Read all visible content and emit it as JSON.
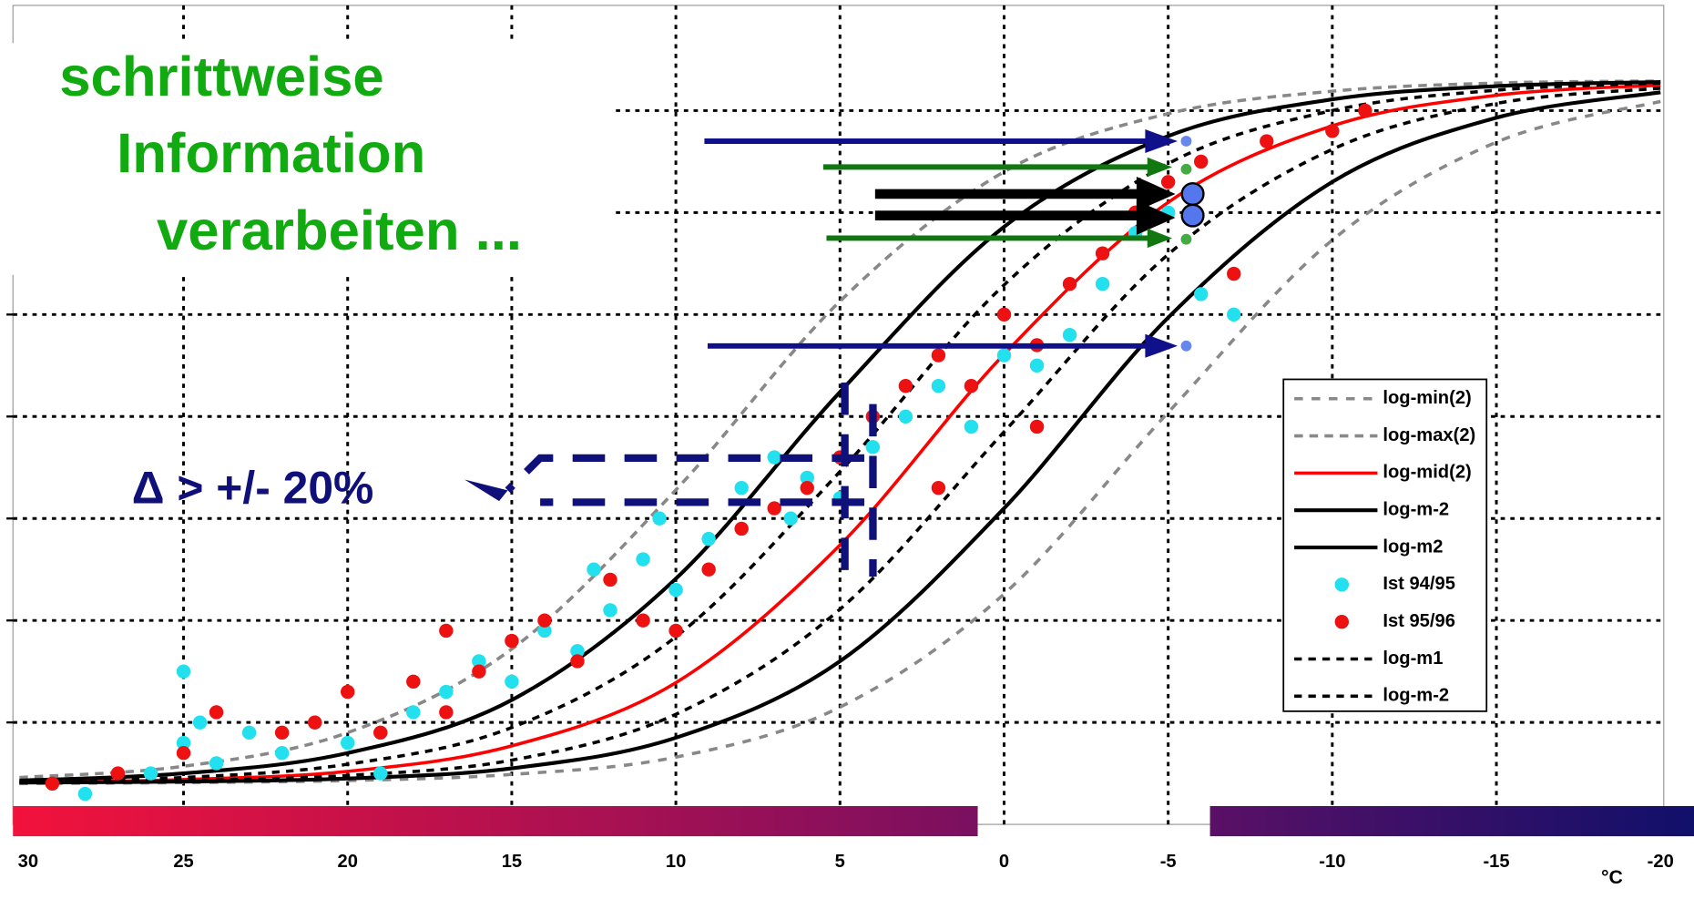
{
  "chart_data": {
    "type": "line",
    "annotations": {
      "heading": [
        "schrittweise",
        "Information",
        "verarbeiten ..."
      ],
      "delta": "Δ > +/- 20%",
      "unit": "°C"
    },
    "x": [
      30,
      25,
      20,
      15,
      10,
      5,
      0,
      -5,
      -10,
      -15,
      -20
    ],
    "xlim": [
      30,
      -20
    ],
    "xticks": [
      30,
      25,
      20,
      15,
      10,
      5,
      0,
      -5,
      -10,
      -15,
      -20
    ],
    "ylim": [
      0,
      8
    ],
    "yticks": [
      1,
      2,
      3,
      4,
      5,
      6,
      7
    ],
    "grid": true,
    "legend": "right",
    "series": [
      {
        "name": "log-min(2)",
        "type": "line",
        "color": "#888888",
        "dash": "8 8",
        "width": 3,
        "values": [
          0.4,
          0.41,
          0.43,
          0.49,
          0.66,
          1.15,
          2.26,
          4.04,
          5.73,
          6.69,
          7.09
        ]
      },
      {
        "name": "log-max(2)",
        "type": "line",
        "color": "#888888",
        "dash": "8 6",
        "width": 3,
        "values": [
          0.46,
          0.57,
          0.9,
          1.72,
          3.28,
          5.13,
          6.4,
          6.97,
          7.19,
          7.27,
          7.29
        ]
      },
      {
        "name": "log-mid(2)",
        "type": "line",
        "color": "#ff0000",
        "dash": "",
        "width": 3,
        "values": [
          0.41,
          0.44,
          0.52,
          0.77,
          1.39,
          2.74,
          4.61,
          6.1,
          6.85,
          7.15,
          7.25
        ]
      },
      {
        "name": "log-m-2",
        "type": "line",
        "color": "#000000",
        "dash": "",
        "width": 3.5,
        "values": [
          0.43,
          0.5,
          0.7,
          1.22,
          2.41,
          4.24,
          5.86,
          6.75,
          7.11,
          7.24,
          7.28
        ]
      },
      {
        "name": "log-m2",
        "type": "line",
        "color": "#000000",
        "dash": "",
        "width": 3.5,
        "values": [
          0.41,
          0.42,
          0.45,
          0.55,
          0.85,
          1.6,
          3.1,
          4.97,
          6.3,
          6.93,
          7.18
        ]
      },
      {
        "name": "Ist 94/95",
        "type": "scatter",
        "color": "#22e0ee",
        "x": [
          28,
          26,
          25,
          24.5,
          24,
          23,
          22,
          21,
          20,
          19,
          18,
          17,
          16,
          15,
          14,
          13,
          12.5,
          12,
          11,
          10,
          9,
          8,
          7,
          6.5,
          6,
          5,
          4,
          3,
          2,
          1,
          0,
          -1,
          -2,
          -3,
          -4,
          -5,
          -6,
          -7,
          25,
          10.5
        ],
        "values": [
          0.3,
          0.5,
          0.8,
          1.0,
          0.6,
          0.9,
          0.7,
          1.0,
          0.8,
          0.5,
          1.1,
          1.3,
          1.6,
          1.4,
          1.9,
          1.7,
          2.5,
          2.1,
          2.6,
          2.3,
          2.8,
          3.3,
          3.6,
          3.0,
          3.4,
          3.2,
          3.7,
          4.0,
          4.3,
          3.9,
          4.6,
          4.5,
          4.8,
          5.3,
          5.8,
          6.0,
          5.2,
          5.0,
          1.5,
          3.0
        ]
      },
      {
        "name": "Ist 95/96",
        "type": "scatter",
        "color": "#ee1111",
        "x": [
          29,
          27,
          25,
          24,
          22,
          21,
          20,
          19,
          18,
          17,
          16,
          15,
          14,
          13,
          12,
          11,
          10,
          9,
          8,
          7,
          6,
          5,
          4,
          3,
          2,
          1,
          0,
          -1,
          -2,
          -3,
          -4,
          -5,
          -6,
          -8,
          -10,
          -11,
          -7,
          17,
          -1,
          2
        ],
        "values": [
          0.4,
          0.5,
          0.7,
          1.1,
          0.9,
          1.0,
          1.3,
          0.9,
          1.4,
          1.1,
          1.5,
          1.8,
          2.0,
          1.6,
          2.4,
          2.0,
          1.9,
          2.5,
          2.9,
          3.1,
          3.3,
          3.6,
          4.0,
          4.3,
          4.6,
          4.3,
          5.0,
          4.7,
          5.3,
          5.6,
          6.0,
          6.3,
          6.5,
          6.7,
          6.8,
          7.0,
          5.4,
          1.9,
          3.9,
          3.3
        ]
      },
      {
        "name": "log-m1",
        "type": "line",
        "color": "#000000",
        "dash": "7 6",
        "width": 3,
        "values": [
          0.42,
          0.46,
          0.59,
          0.95,
          1.84,
          3.46,
          5.29,
          6.48,
          7.0,
          7.2,
          7.27
        ]
      },
      {
        "name": "log-m-2",
        "type": "line",
        "color": "#000000",
        "dash": "7 6",
        "width": 3,
        "values": [
          0.41,
          0.43,
          0.48,
          0.63,
          1.08,
          2.11,
          3.85,
          5.59,
          6.62,
          7.07,
          7.22
        ]
      }
    ]
  }
}
